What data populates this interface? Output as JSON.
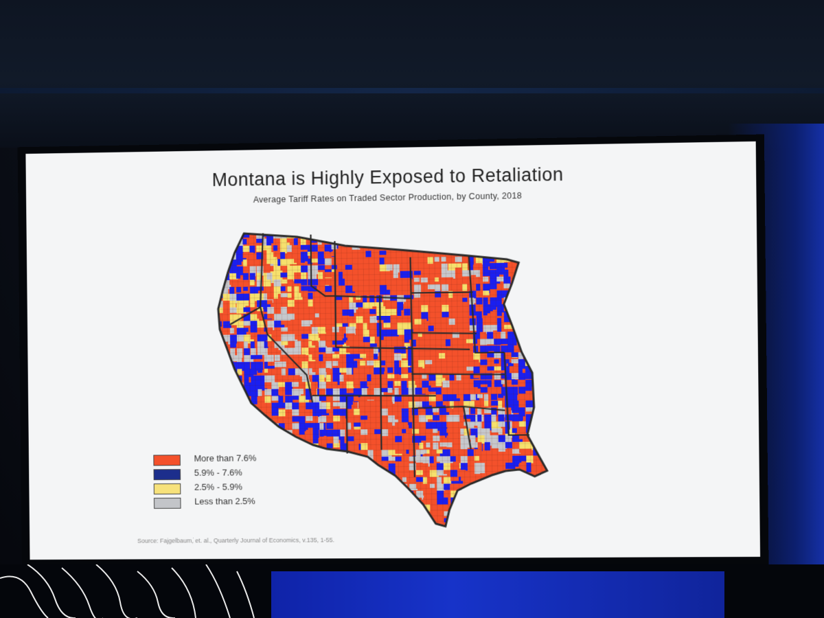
{
  "slide": {
    "title": "Montana is Highly Exposed to Retaliation",
    "subtitle": "Average Tariff Rates on Traded Sector Production, by County, 2018",
    "source": "Source:   Fajgelbaum, et. al., Quarterly Journal of Economics, v.135, 1-55."
  },
  "legend": [
    {
      "label": "More than 7.6%",
      "color": "#f4512b"
    },
    {
      "label": "5.9% - 7.6%",
      "color": "#1c2e8c"
    },
    {
      "label": "2.5% - 5.9%",
      "color": "#f7e27b"
    },
    {
      "label": "Less than 2.5%",
      "color": "#c3c5c9"
    }
  ],
  "map": {
    "colors": {
      "high": "#f4512b",
      "mid": "#1a1ff0",
      "low": "#f6e06d",
      "none": "#c6c8cc",
      "border": "#2a2a2a"
    },
    "region": "Western and Central United States, county level"
  }
}
